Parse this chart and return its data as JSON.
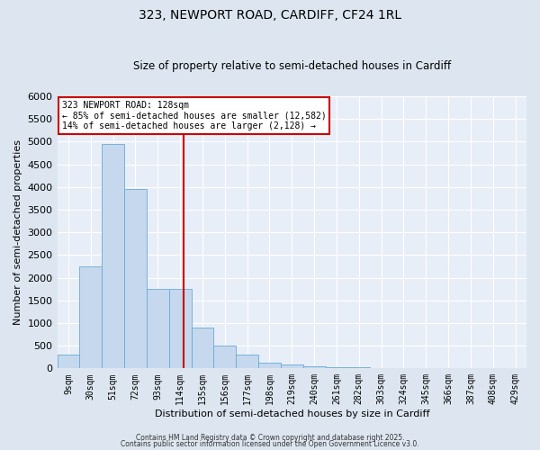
{
  "title": "323, NEWPORT ROAD, CARDIFF, CF24 1RL",
  "subtitle": "Size of property relative to semi-detached houses in Cardiff",
  "xlabel": "Distribution of semi-detached houses by size in Cardiff",
  "ylabel": "Number of semi-detached properties",
  "categories": [
    "9sqm",
    "30sqm",
    "51sqm",
    "72sqm",
    "93sqm",
    "114sqm",
    "135sqm",
    "156sqm",
    "177sqm",
    "198sqm",
    "219sqm",
    "240sqm",
    "261sqm",
    "282sqm",
    "303sqm",
    "324sqm",
    "345sqm",
    "366sqm",
    "387sqm",
    "408sqm",
    "429sqm"
  ],
  "values": [
    300,
    2250,
    4950,
    3950,
    1750,
    1750,
    900,
    500,
    300,
    120,
    80,
    50,
    30,
    20,
    10,
    5,
    2,
    1,
    0,
    0,
    0
  ],
  "bar_color": "#c5d8ee",
  "bar_edgecolor": "#6aaad4",
  "vline_x": 4.5,
  "vline_color": "#cc0000",
  "annotation_title": "323 NEWPORT ROAD: 128sqm",
  "annotation_line1": "← 85% of semi-detached houses are smaller (12,582)",
  "annotation_line2": "14% of semi-detached houses are larger (2,128) →",
  "annotation_box_color": "#cc0000",
  "ylim": [
    0,
    6000
  ],
  "yticks": [
    0,
    500,
    1000,
    1500,
    2000,
    2500,
    3000,
    3500,
    4000,
    4500,
    5000,
    5500,
    6000
  ],
  "footer1": "Contains HM Land Registry data © Crown copyright and database right 2025.",
  "footer2": "Contains public sector information licensed under the Open Government Licence v3.0.",
  "bg_color": "#dde6f0",
  "plot_bg_color": "#e8eef7",
  "grid_color": "#ffffff",
  "title_fontsize": 10,
  "subtitle_fontsize": 8.5
}
